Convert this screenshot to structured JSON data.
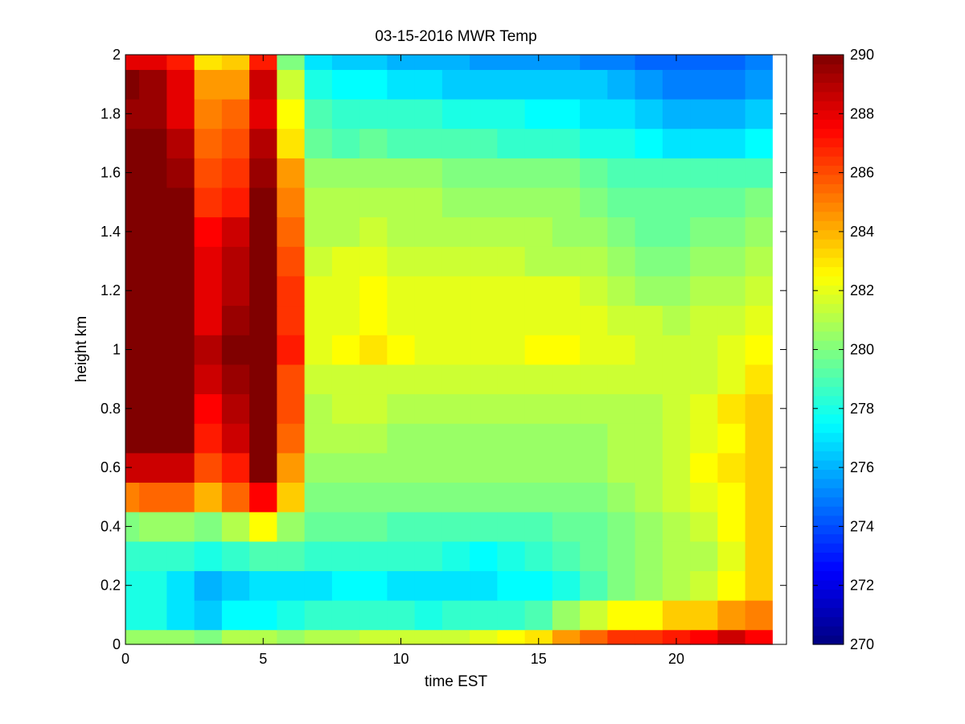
{
  "chart_data": {
    "type": "heatmap",
    "title": "03-15-2016 MWR Temp",
    "xlabel": "time EST",
    "ylabel": "height km",
    "xlim": [
      0,
      24
    ],
    "ylim": [
      0,
      2
    ],
    "xticks": [
      "0",
      "5",
      "10",
      "15",
      "20"
    ],
    "yticks": [
      "0",
      "0.2",
      "0.4",
      "0.6",
      "0.8",
      "1",
      "1.2",
      "1.4",
      "1.6",
      "1.8",
      "2"
    ],
    "x": [
      0,
      1,
      2,
      3,
      4,
      5,
      6,
      7,
      8,
      9,
      10,
      11,
      12,
      13,
      14,
      15,
      16,
      17,
      18,
      19,
      20,
      21,
      22,
      23
    ],
    "y": [
      0.0,
      0.1,
      0.2,
      0.3,
      0.4,
      0.5,
      0.6,
      0.7,
      0.8,
      0.9,
      1.0,
      1.1,
      1.2,
      1.3,
      1.4,
      1.5,
      1.6,
      1.7,
      1.8,
      1.9,
      2.0
    ],
    "z": [
      [
        280.5,
        280.5,
        280.5,
        280.0,
        281.0,
        281.0,
        280.5,
        281.0,
        281.0,
        281.5,
        281.5,
        281.5,
        281.5,
        282.0,
        282.5,
        283.0,
        284.5,
        285.5,
        286.5,
        286.5,
        287.0,
        287.5,
        288.5,
        287.5
      ],
      [
        278.0,
        278.0,
        277.0,
        276.5,
        277.5,
        277.5,
        278.0,
        278.5,
        278.5,
        278.5,
        278.5,
        278.0,
        278.5,
        278.5,
        278.5,
        279.0,
        280.5,
        281.5,
        282.5,
        282.5,
        283.5,
        283.5,
        284.5,
        285.0
      ],
      [
        278.0,
        278.0,
        277.0,
        276.0,
        276.5,
        277.0,
        277.0,
        277.0,
        277.5,
        277.5,
        277.0,
        277.0,
        277.0,
        277.0,
        277.5,
        277.5,
        278.0,
        279.0,
        280.0,
        280.5,
        281.0,
        281.5,
        282.5,
        283.5
      ],
      [
        278.5,
        278.5,
        278.5,
        278.0,
        278.5,
        279.0,
        279.0,
        278.5,
        278.5,
        278.5,
        278.5,
        278.5,
        278.0,
        277.5,
        278.0,
        278.5,
        279.0,
        279.5,
        280.0,
        280.5,
        281.0,
        281.0,
        282.0,
        283.5
      ],
      [
        280.0,
        280.5,
        280.5,
        280.0,
        281.0,
        282.5,
        280.5,
        279.5,
        279.5,
        279.5,
        279.0,
        279.0,
        279.0,
        279.0,
        279.0,
        279.0,
        279.5,
        279.5,
        280.0,
        280.5,
        281.0,
        281.5,
        282.5,
        283.5
      ],
      [
        285.0,
        285.5,
        285.5,
        284.0,
        285.5,
        287.5,
        283.5,
        280.0,
        280.0,
        280.0,
        280.0,
        280.0,
        280.0,
        280.0,
        280.0,
        280.0,
        280.0,
        280.0,
        280.5,
        281.0,
        281.5,
        282.0,
        282.5,
        283.5
      ],
      [
        288.5,
        288.5,
        288.5,
        286.0,
        287.0,
        290.0,
        284.5,
        280.5,
        280.5,
        280.5,
        280.5,
        280.5,
        280.5,
        280.5,
        280.5,
        280.5,
        280.5,
        280.5,
        281.0,
        281.0,
        281.5,
        282.5,
        283.0,
        283.5
      ],
      [
        290.0,
        290.0,
        290.0,
        287.0,
        288.5,
        290.0,
        285.5,
        281.0,
        281.0,
        281.0,
        280.5,
        280.5,
        280.5,
        280.5,
        280.5,
        280.5,
        280.5,
        280.5,
        281.0,
        281.0,
        281.5,
        282.0,
        282.5,
        283.5
      ],
      [
        290.0,
        290.0,
        290.0,
        287.5,
        289.0,
        290.0,
        286.0,
        281.0,
        281.5,
        281.5,
        281.0,
        281.0,
        281.0,
        281.0,
        281.0,
        281.0,
        281.0,
        281.0,
        281.0,
        281.0,
        281.5,
        282.0,
        283.0,
        283.5
      ],
      [
        290.0,
        290.0,
        290.0,
        288.5,
        289.5,
        290.0,
        286.0,
        281.5,
        281.5,
        281.5,
        281.5,
        281.5,
        281.5,
        281.5,
        281.5,
        281.5,
        281.5,
        281.5,
        281.5,
        281.5,
        281.5,
        281.5,
        282.0,
        283.0
      ],
      [
        290.0,
        290.0,
        290.0,
        289.0,
        290.0,
        290.0,
        287.0,
        282.0,
        282.5,
        283.0,
        282.5,
        282.0,
        282.0,
        282.0,
        282.0,
        282.5,
        282.5,
        282.0,
        282.0,
        281.5,
        281.5,
        281.5,
        282.0,
        282.5
      ],
      [
        290.0,
        290.0,
        290.0,
        288.0,
        289.5,
        290.0,
        286.5,
        282.0,
        282.0,
        282.5,
        282.0,
        282.0,
        282.0,
        282.0,
        282.0,
        282.0,
        282.0,
        282.0,
        281.5,
        281.5,
        281.0,
        281.5,
        281.5,
        282.0
      ],
      [
        290.0,
        290.0,
        290.0,
        288.0,
        289.0,
        290.0,
        286.5,
        282.0,
        282.0,
        282.5,
        282.0,
        282.0,
        282.0,
        282.0,
        282.0,
        282.0,
        282.0,
        281.5,
        281.0,
        280.5,
        280.5,
        281.0,
        281.0,
        281.5
      ],
      [
        290.0,
        290.0,
        290.0,
        288.0,
        289.0,
        290.0,
        286.0,
        281.5,
        282.0,
        282.0,
        281.5,
        281.5,
        281.5,
        281.5,
        281.5,
        281.0,
        281.0,
        281.0,
        280.5,
        280.0,
        280.0,
        280.5,
        280.5,
        281.0
      ],
      [
        290.0,
        290.0,
        290.0,
        287.5,
        288.5,
        290.0,
        285.5,
        281.0,
        281.0,
        281.5,
        281.0,
        281.0,
        281.0,
        281.0,
        281.0,
        281.0,
        280.5,
        280.5,
        280.0,
        279.5,
        279.5,
        280.0,
        280.0,
        280.5
      ],
      [
        290.0,
        290.0,
        290.0,
        286.5,
        287.0,
        290.0,
        285.0,
        281.0,
        281.0,
        281.0,
        281.0,
        281.0,
        280.5,
        280.5,
        280.5,
        280.5,
        280.5,
        280.0,
        279.5,
        279.5,
        279.5,
        279.5,
        279.5,
        280.0
      ],
      [
        290.0,
        290.0,
        289.5,
        286.0,
        286.5,
        289.5,
        284.5,
        280.5,
        280.5,
        280.5,
        280.5,
        280.5,
        280.0,
        280.0,
        280.0,
        280.0,
        280.0,
        279.5,
        279.0,
        279.0,
        279.0,
        279.0,
        279.0,
        279.0
      ],
      [
        290.0,
        290.0,
        289.0,
        285.5,
        286.0,
        289.0,
        283.0,
        279.5,
        279.0,
        279.5,
        279.0,
        279.0,
        279.0,
        279.0,
        278.5,
        278.5,
        278.5,
        278.0,
        278.0,
        277.5,
        277.0,
        277.0,
        277.0,
        277.5
      ],
      [
        289.5,
        289.5,
        288.0,
        285.0,
        285.5,
        288.0,
        282.5,
        279.0,
        278.5,
        278.5,
        278.5,
        278.5,
        278.0,
        278.0,
        278.0,
        277.5,
        277.5,
        277.0,
        277.0,
        276.5,
        276.0,
        276.0,
        276.0,
        276.5
      ],
      [
        290.0,
        289.5,
        288.0,
        284.5,
        284.5,
        288.5,
        281.5,
        278.0,
        277.5,
        277.5,
        277.0,
        277.0,
        276.5,
        276.5,
        276.5,
        276.5,
        276.5,
        276.5,
        276.0,
        275.5,
        275.0,
        275.0,
        275.0,
        275.5
      ],
      [
        288.0,
        288.0,
        287.0,
        283.0,
        283.5,
        287.0,
        280.0,
        277.0,
        276.5,
        276.5,
        276.0,
        276.0,
        276.0,
        275.5,
        275.5,
        275.5,
        275.5,
        275.0,
        275.0,
        274.5,
        274.5,
        274.5,
        274.5,
        275.0
      ]
    ],
    "colorbar": {
      "min": 270,
      "max": 290,
      "ticks": [
        "270",
        "272",
        "274",
        "276",
        "278",
        "280",
        "282",
        "284",
        "286",
        "288",
        "290"
      ],
      "colormap": "jet"
    },
    "grid": false,
    "legend": "none"
  }
}
